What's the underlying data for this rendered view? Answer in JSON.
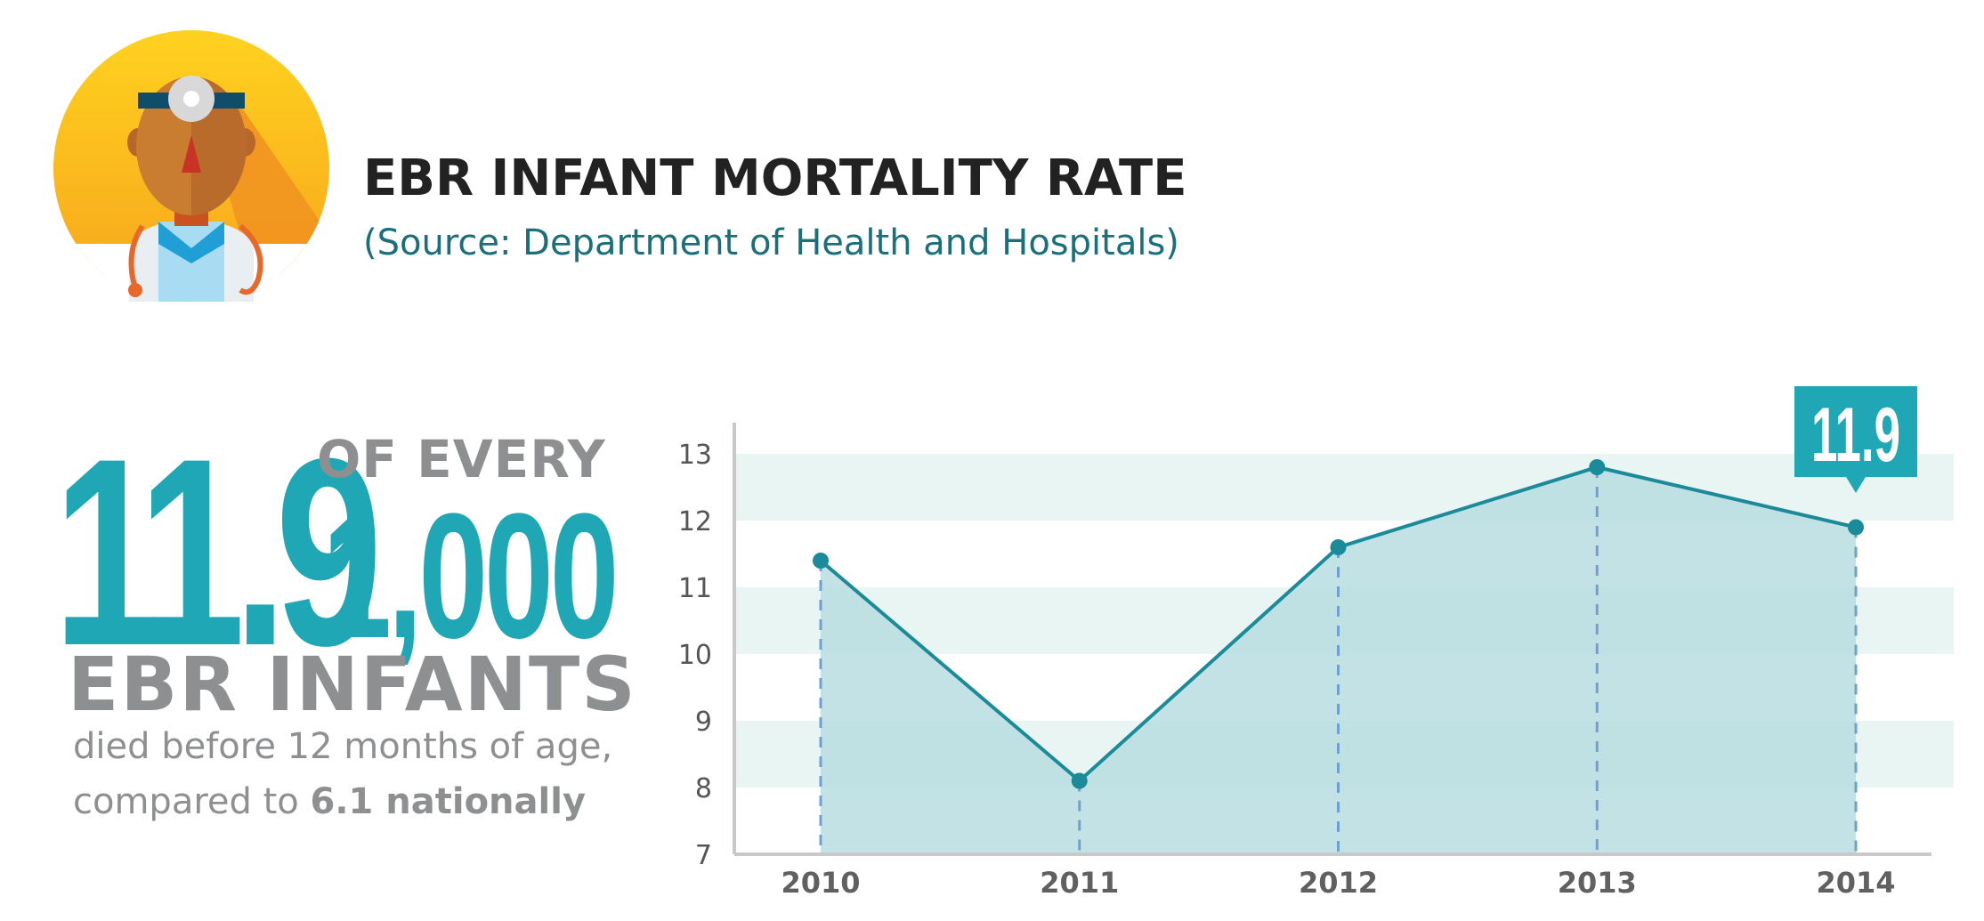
{
  "header": {
    "title": "EBR INFANT MORTALITY RATE",
    "source": "(Source: Department of Health and Hospitals)"
  },
  "highlight": {
    "rate": "11.9",
    "of_every": "OF EVERY",
    "per": "1,000",
    "subject": "EBR INFANTS",
    "line1": "died before 12 months of age,",
    "line2_prefix": "compared to ",
    "line2_bold": "6.1 nationally"
  },
  "icons": {
    "avatar": "doctor-icon"
  },
  "colors": {
    "accent": "#20a7b5",
    "line": "#1b8b99",
    "area": "#b9dde1",
    "band": "#e9f5f3",
    "guide": "#6f9fd3",
    "gray_text": "#8d8f91",
    "title": "#222222"
  },
  "chart_data": {
    "type": "area",
    "categories": [
      "2010",
      "2011",
      "2012",
      "2013",
      "2014"
    ],
    "values": [
      11.4,
      8.1,
      11.6,
      12.8,
      11.9
    ],
    "ylim": [
      7,
      13.4
    ],
    "yticks": [
      7,
      8,
      9,
      10,
      11,
      12,
      13
    ],
    "grid": "alternating-bands",
    "callout": {
      "category": "2014",
      "label": "11.9"
    },
    "title": "",
    "xlabel": "",
    "ylabel": ""
  }
}
